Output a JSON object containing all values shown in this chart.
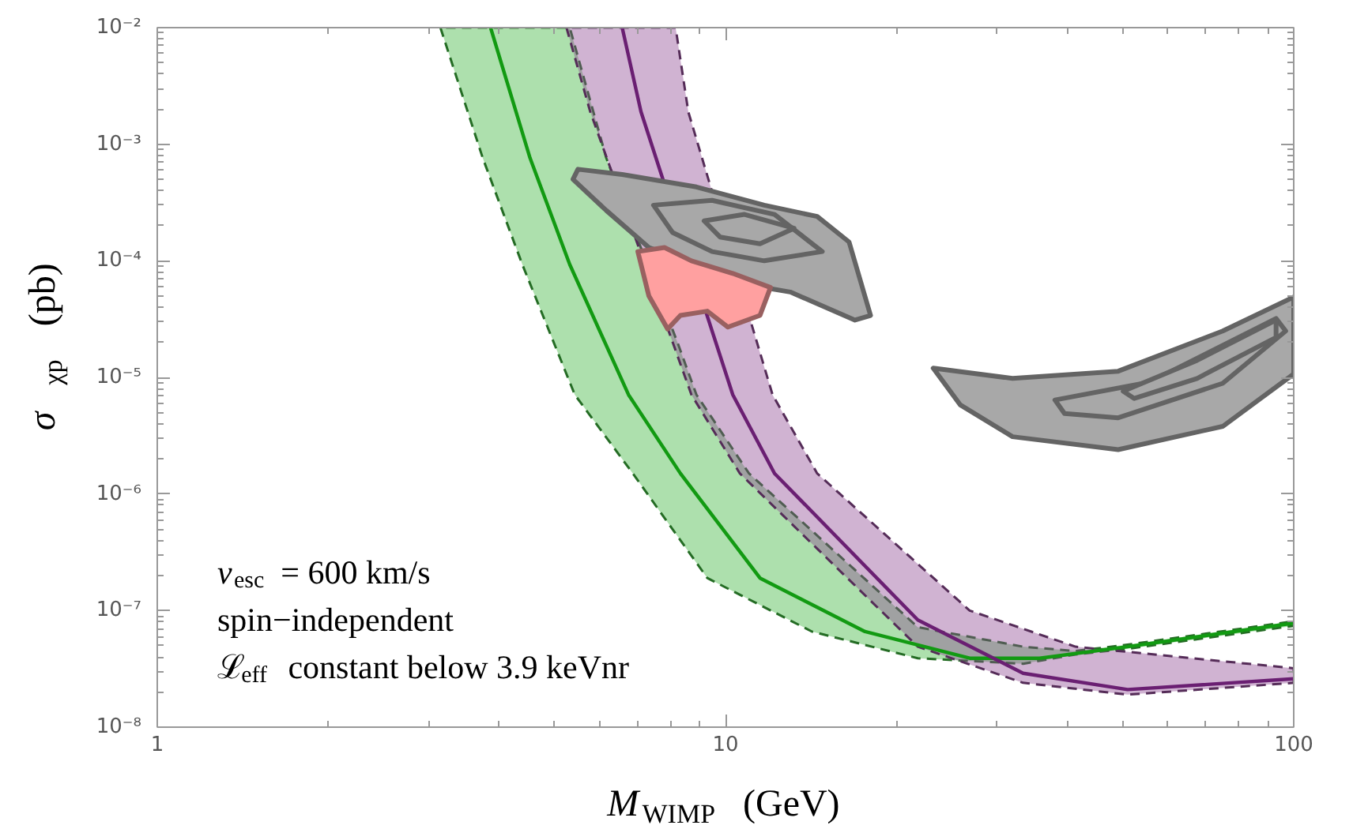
{
  "chart_data": {
    "type": "line",
    "xlabel": "M$_{WIMP}$ (GeV)",
    "ylabel": "σ$_{χp}$ (pb)",
    "log": "xy",
    "grid": false,
    "xlim": [
      1,
      100
    ],
    "xticks": [
      1,
      10,
      100
    ],
    "ylim": [
      1e-08,
      0.01
    ],
    "yticks": [
      {
        "value": 1e-08,
        "label": "10⁻⁸"
      },
      {
        "value": 1e-07,
        "label": "10⁻⁷"
      },
      {
        "value": 1e-06,
        "label": "10⁻⁶"
      },
      {
        "value": 1e-05,
        "label": "10⁻⁵"
      },
      {
        "value": 0.0001,
        "label": "10⁻⁴"
      },
      {
        "value": 0.001,
        "label": "10⁻³"
      },
      {
        "value": 0.01,
        "label": "10⁻²"
      }
    ],
    "annotations": [
      "v$_{esc}$ = 600 km/s",
      "spin−independent",
      "ℒ$_{eff}$ constant below 3.9 keVnr"
    ],
    "series": [
      {
        "type": "area",
        "color": "#3cb43c",
        "line_style": "dashed",
        "x": [
          3.15,
          3.74,
          4.39,
          5.43,
          6.87,
          9.29,
          14.2,
          21.8,
          33.4,
          41.3,
          51,
          100,
          100,
          51,
          41.3,
          33.4,
          21.8,
          11.0,
          8.89,
          8.23,
          6.17,
          5.32
        ],
        "values": [
          0.01,
          0.00076,
          9.3e-05,
          7.1e-06,
          1.5e-06,
          1.9e-07,
          6.6e-08,
          3.9e-08,
          3.5e-08,
          4.2e-08,
          4.7e-08,
          7.4e-08,
          8.1e-08,
          5.1e-08,
          4.5e-08,
          4.9e-08,
          7.2e-08,
          1.5e-06,
          7.1e-06,
          2e-05,
          0.00076,
          0.01
        ]
      },
      {
        "type": "area",
        "color": "#8e4a94",
        "line_style": "dashed",
        "x": [
          5.25,
          5.78,
          8.71,
          10.6,
          21.8,
          33.4,
          51,
          100,
          100,
          41.3,
          26.9,
          14.5,
          12.1,
          8.6,
          8.17
        ],
        "values": [
          0.01,
          0.0019,
          7.1e-06,
          1.5e-06,
          4.9e-08,
          2.4e-08,
          1.9e-08,
          2.4e-08,
          3.2e-08,
          4.9e-08,
          1e-07,
          1.5e-06,
          7.1e-06,
          0.0019,
          0.01
        ]
      },
      {
        "color": "#129a12",
        "x": [
          3.86,
          4.53,
          5.32,
          6.75,
          8.33,
          11.5,
          17.6,
          26.9,
          35.7,
          51,
          100
        ],
        "values": [
          0.01,
          0.00076,
          9.3e-05,
          7.1e-06,
          1.5e-06,
          1.9e-07,
          6.6e-08,
          3.9e-08,
          3.9e-08,
          4.9e-08,
          7.8e-08
        ]
      },
      {
        "color": "#6a1f72",
        "x": [
          6.58,
          7.1,
          10.3,
          12.2,
          21.8,
          33.4,
          51,
          100
        ],
        "values": [
          0.01,
          0.0019,
          7.1e-06,
          1.5e-06,
          8.3e-08,
          2.9e-08,
          2.1e-08,
          2.6e-08
        ]
      },
      {
        "type": "area",
        "color": "#a8a8a8",
        "x": [
          5.5,
          6.58,
          8.89,
          11.7,
          14.5,
          16.5,
          18.0,
          16.9,
          13.0,
          11.7,
          7.33,
          6.17,
          5.39
        ],
        "values": [
          0.00061,
          0.00055,
          0.00043,
          0.0003,
          0.00024,
          0.000145,
          3.4e-05,
          3.1e-05,
          5.4e-05,
          5.9e-05,
          0.00013,
          0.00027,
          0.0005
        ]
      },
      {
        "type": "area",
        "color": "#ffa0a0",
        "x": [
          7.01,
          7.81,
          8.71,
          10.3,
          12.0,
          11.5,
          10.1,
          9.29,
          8.33,
          7.91,
          7.33
        ],
        "values": [
          0.00012,
          0.00013,
          0.0001,
          7.8e-05,
          5.9e-05,
          3.4e-05,
          2.7e-05,
          3.7e-05,
          3.4e-05,
          2.6e-05,
          5e-05
        ]
      },
      {
        "type": "area",
        "color": "#a8a8a8",
        "x": [
          23.2,
          32.0,
          49.1,
          75.0,
          100,
          100,
          75.0,
          49.1,
          32.0,
          25.9
        ],
        "values": [
          1.2e-05,
          9.8e-06,
          1.13e-05,
          2.5e-05,
          4.9e-05,
          1.07e-05,
          3.8e-06,
          2.4e-06,
          3.1e-06,
          5.8e-06
        ]
      },
      {
        "type": "area",
        "color": "#a8a8a8",
        "x": [
          7.47,
          9.47,
          12.2,
          14.8,
          11.7,
          9.47,
          8.07,
          7.47
        ],
        "values": [
          0.0003,
          0.00033,
          0.00025,
          0.00012,
          0.0001,
          0.00012,
          0.000175,
          0.0003
        ]
      },
      {
        "type": "area",
        "color": "#a8a8a8",
        "x": [
          9.17,
          10.8,
          13.2,
          11.5,
          9.78,
          9.17
        ],
        "values": [
          0.00022,
          0.00025,
          0.00019,
          0.00014,
          0.00016,
          0.00022
        ]
      },
      {
        "type": "area",
        "color": "#a8a8a8",
        "x": [
          38.0,
          55.8,
          93.1,
          96.8,
          75.0,
          49.1,
          39.5,
          38.0
        ],
        "values": [
          6.4e-06,
          9.1e-06,
          3.2e-05,
          2.5e-05,
          8.9e-06,
          4.5e-06,
          4.9e-06,
          6.4e-06
        ]
      },
      {
        "type": "area",
        "color": "#a8a8a8",
        "x": [
          50.1,
          67.6,
          93.1,
          93.1,
          67.6,
          52.4,
          50.1
        ],
        "values": [
          7.6e-06,
          1.4e-05,
          3.1e-05,
          2.2e-05,
          9.8e-06,
          6.6e-06,
          7.6e-06
        ]
      }
    ]
  }
}
